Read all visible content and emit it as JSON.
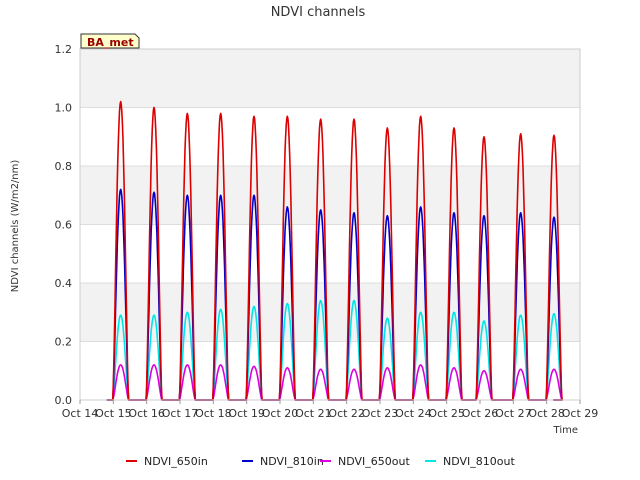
{
  "chart_data": {
    "type": "line",
    "title": "NDVI channels",
    "xlabel": "Time",
    "ylabel": "NDVI channels (W/m2/nm)",
    "badge": "BA_met",
    "xlim": [
      14,
      29
    ],
    "ylim": [
      0.0,
      1.2
    ],
    "x_ticks": [
      "Oct 14",
      "Oct 15",
      "Oct 16",
      "Oct 17",
      "Oct 18",
      "Oct 19",
      "Oct 20",
      "Oct 21",
      "Oct 22",
      "Oct 23",
      "Oct 24",
      "Oct 25",
      "Oct 26",
      "Oct 27",
      "Oct 28",
      "Oct 29"
    ],
    "y_ticks": [
      "0.0",
      "0.2",
      "0.4",
      "0.6",
      "0.8",
      "1.0",
      "1.2"
    ],
    "day_peak_times": [
      15.22,
      16.22,
      17.22,
      18.22,
      19.22,
      20.22,
      21.22,
      22.22,
      23.22,
      24.22,
      25.22,
      26.12,
      27.22,
      28.22
    ],
    "series": [
      {
        "name": "NDVI_650in",
        "color": "#dd0000",
        "daily_peaks": [
          1.02,
          1.0,
          0.98,
          0.98,
          0.97,
          0.97,
          0.96,
          0.96,
          0.93,
          0.97,
          0.93,
          0.9,
          0.91,
          0.905
        ]
      },
      {
        "name": "NDVI_810in",
        "color": "#0000cc",
        "daily_peaks": [
          0.72,
          0.71,
          0.7,
          0.7,
          0.7,
          0.66,
          0.65,
          0.64,
          0.63,
          0.66,
          0.64,
          0.63,
          0.64,
          0.625
        ]
      },
      {
        "name": "NDVI_650out",
        "color": "#dd00dd",
        "daily_peaks": [
          0.12,
          0.12,
          0.12,
          0.12,
          0.115,
          0.11,
          0.105,
          0.105,
          0.11,
          0.12,
          0.11,
          0.1,
          0.105,
          0.105
        ]
      },
      {
        "name": "NDVI_810out",
        "color": "#00e5e5",
        "daily_peaks": [
          0.29,
          0.29,
          0.3,
          0.31,
          0.32,
          0.33,
          0.34,
          0.34,
          0.28,
          0.3,
          0.3,
          0.27,
          0.29,
          0.295
        ]
      }
    ],
    "grid": true,
    "legend": "bottom"
  }
}
